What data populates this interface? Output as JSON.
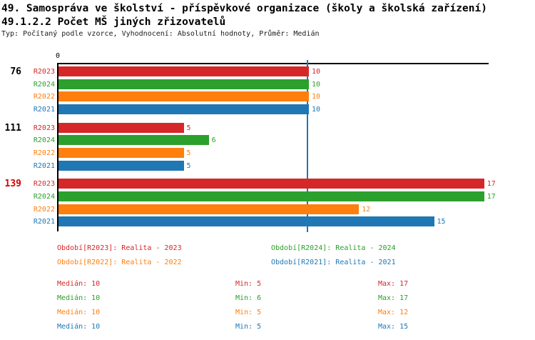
{
  "header": {
    "title_line1": "49. Samospráva ve školství - příspěvkové organizace (školy a školská zařízení)",
    "title_line2": "49.1.2.2 Počet MŠ jiných zřizovatelů",
    "subtitle": "Typ: Počítaný podle vzorce, Vyhodnocení: Absolutní hodnoty, Průměr: Medián"
  },
  "colors": {
    "R2023": "#d62728",
    "R2024": "#2ca02c",
    "R2022": "#ff7f0e",
    "R2021": "#1f77b4",
    "axis": "#000000",
    "median_line": "#1f77b4",
    "highlight_label": "#d40000",
    "group_label": "#000000"
  },
  "chart_data": {
    "type": "bar",
    "orientation": "horizontal",
    "title": "49.1.2.2 Počet MŠ jiných zřizovatelů",
    "origin_tick_label": "0",
    "xlim": [
      0,
      17.2
    ],
    "grid": false,
    "median_reference_line": 10,
    "series_order": [
      "R2023",
      "R2024",
      "R2022",
      "R2021"
    ],
    "groups": [
      {
        "label": "76",
        "highlighted": false,
        "values": {
          "R2023": 10,
          "R2024": 10,
          "R2022": 10,
          "R2021": 10
        }
      },
      {
        "label": "111",
        "highlighted": false,
        "values": {
          "R2023": 5,
          "R2024": 6,
          "R2022": 5,
          "R2021": 5
        }
      },
      {
        "label": "139",
        "highlighted": true,
        "values": {
          "R2023": 17,
          "R2024": 17,
          "R2022": 12,
          "R2021": 15
        }
      }
    ]
  },
  "legend": {
    "items": [
      {
        "series": "R2023",
        "label": "Období[R2023]: Realita - 2023"
      },
      {
        "series": "R2024",
        "label": "Období[R2024]: Realita - 2024"
      },
      {
        "series": "R2022",
        "label": "Období[R2022]: Realita - 2022"
      },
      {
        "series": "R2021",
        "label": "Období[R2021]: Realita - 2021"
      }
    ]
  },
  "stats": {
    "labels": {
      "median": "Medián",
      "min": "Min",
      "max": "Max"
    },
    "rows": [
      {
        "series": "R2023",
        "median": 10,
        "min": 5,
        "max": 17
      },
      {
        "series": "R2024",
        "median": 10,
        "min": 6,
        "max": 17
      },
      {
        "series": "R2022",
        "median": 10,
        "min": 5,
        "max": 12
      },
      {
        "series": "R2021",
        "median": 10,
        "min": 5,
        "max": 15
      }
    ]
  }
}
